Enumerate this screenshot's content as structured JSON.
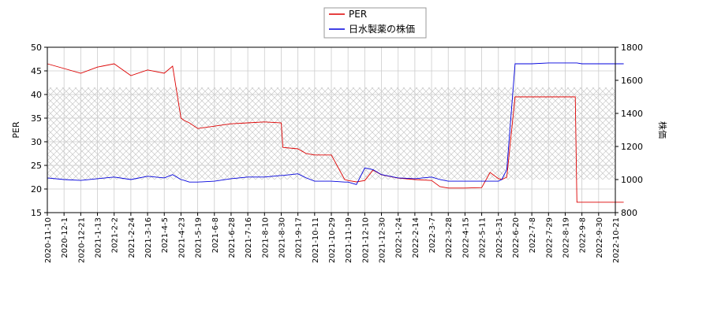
{
  "chart_data": {
    "type": "line",
    "title": "",
    "legend": {
      "placement": "top-center",
      "entries": [
        {
          "name": "PER",
          "color": "#dd0000"
        },
        {
          "name": "日水製薬の株価",
          "color": "#0000dd"
        }
      ]
    },
    "left_axis": {
      "label": "PER",
      "ylim": [
        15,
        50
      ],
      "ticks": [
        "15",
        "20",
        "25",
        "30",
        "35",
        "40",
        "45",
        "50"
      ]
    },
    "right_axis": {
      "label": "株価",
      "ylim": [
        800,
        1800
      ],
      "ticks": [
        "800",
        "1000",
        "1200",
        "1400",
        "1600",
        "1800"
      ]
    },
    "grid": true,
    "hatched_band": {
      "axis": "left",
      "from": 22,
      "to": 41.5
    },
    "x_ticks": [
      "2020-11-10",
      "2020-12-1",
      "2020-12-21",
      "2021-1-13",
      "2021-2-2",
      "2021-2-24",
      "2021-3-16",
      "2021-4-5",
      "2021-4-23",
      "2021-5-19",
      "2021-6-8",
      "2021-6-28",
      "2021-7-16",
      "2021-8-10",
      "2021-8-30",
      "2021-9-17",
      "2021-10-11",
      "2021-10-29",
      "2021-11-19",
      "2021-12-10",
      "2021-12-30",
      "2022-1-24",
      "2022-2-14",
      "2022-3-7",
      "2022-3-28",
      "2022-4-15",
      "2022-5-11",
      "2022-5-31",
      "2022-6-20",
      "2022-7-8",
      "2022-7-29",
      "2022-8-19",
      "2022-9-8",
      "2022-9-30",
      "2022-10-21"
    ],
    "x": [
      0,
      1,
      2,
      3,
      4,
      5,
      6,
      7,
      7.5,
      8,
      8.2,
      8.5,
      9,
      10,
      11,
      12,
      13,
      14,
      14.1,
      15,
      15.5,
      16,
      17,
      17.8,
      18,
      18.5,
      19,
      19.5,
      20,
      21,
      22,
      23,
      23.5,
      24,
      25,
      26,
      26.5,
      27,
      27.2,
      27.5,
      28,
      29,
      30,
      31,
      31.6,
      31.7,
      32,
      33,
      34.5
    ],
    "series": [
      {
        "name": "PER",
        "axis": "left",
        "color": "#dd0000",
        "values": [
          46.5,
          45.5,
          44.5,
          45.8,
          46.5,
          44.0,
          45.2,
          44.5,
          46.0,
          35.0,
          34.5,
          34.0,
          32.8,
          33.3,
          33.8,
          34.0,
          34.2,
          34.0,
          28.8,
          28.5,
          27.5,
          27.2,
          27.2,
          22.0,
          21.8,
          21.5,
          21.8,
          24.0,
          23.0,
          22.3,
          22.0,
          21.8,
          20.5,
          20.2,
          20.2,
          20.3,
          23.5,
          22.2,
          22.0,
          22.5,
          39.5,
          39.5,
          39.5,
          39.5,
          39.5,
          17.2,
          17.2,
          17.2,
          17.2
        ]
      },
      {
        "name": "日水製薬の株価",
        "axis": "right",
        "color": "#0000dd",
        "values": [
          1010,
          1000,
          995,
          1005,
          1015,
          1000,
          1020,
          1010,
          1030,
          1000,
          995,
          985,
          985,
          990,
          1005,
          1015,
          1015,
          1025,
          1025,
          1035,
          1010,
          990,
          990,
          985,
          985,
          970,
          1070,
          1060,
          1030,
          1010,
          1005,
          1015,
          1000,
          990,
          990,
          990,
          990,
          990,
          1000,
          1060,
          1700,
          1700,
          1705,
          1705,
          1705,
          1705,
          1700,
          1700,
          1700
        ]
      }
    ]
  }
}
